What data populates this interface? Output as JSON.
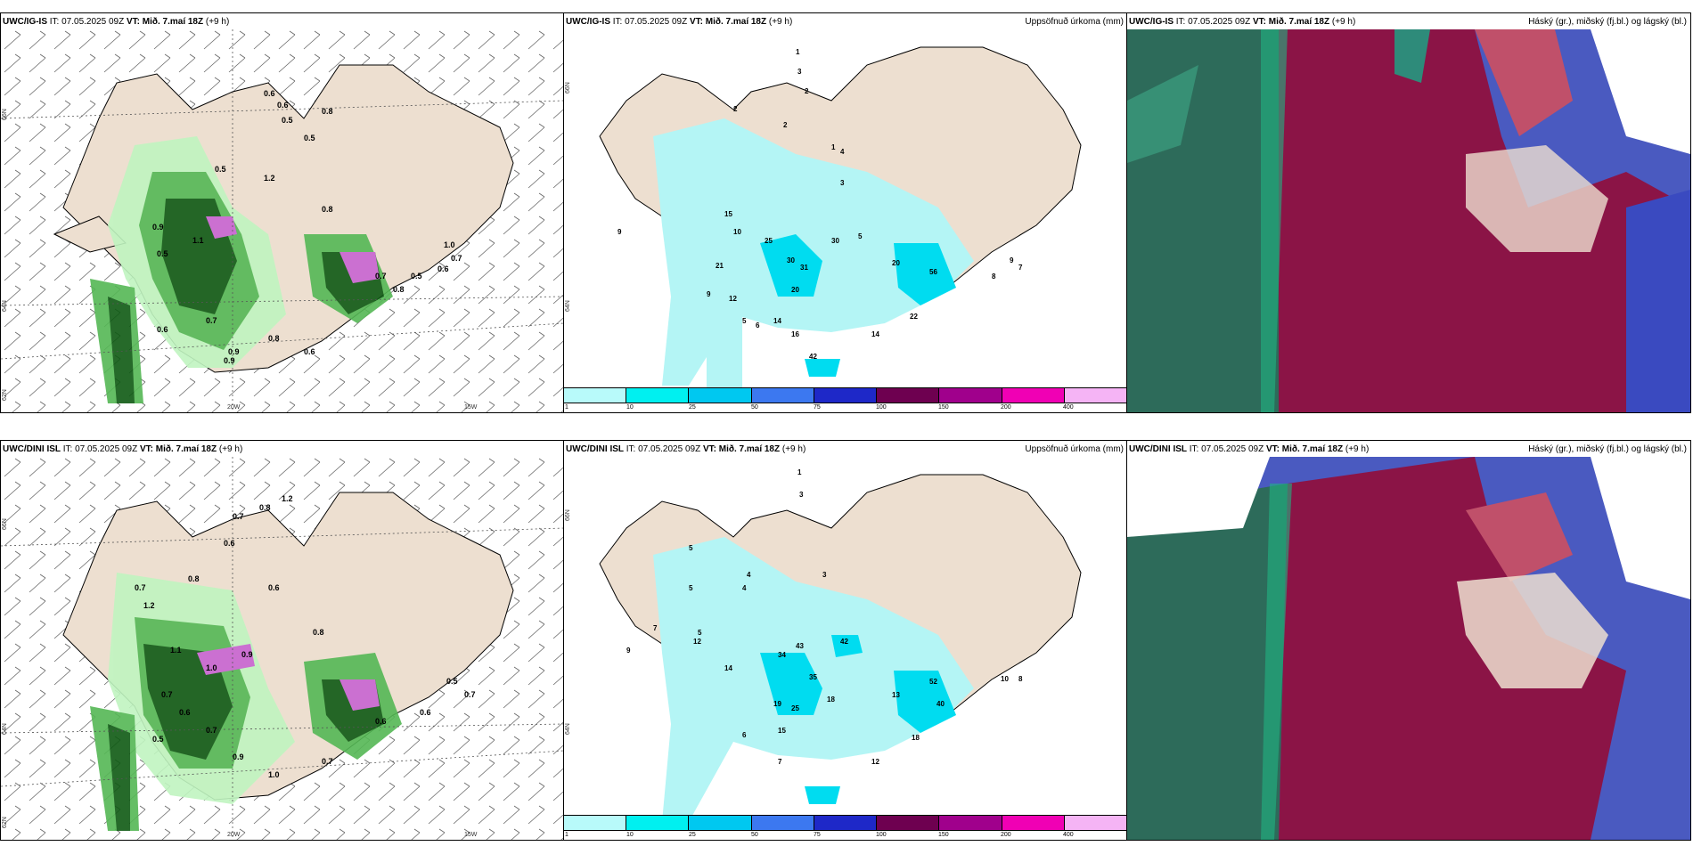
{
  "panels": {
    "top_wind": {
      "model": "UWC/IG-IS",
      "it_label": "IT:",
      "it_value": "07.05.2025 09Z",
      "vt_label": "VT:",
      "vt_value": "Mið. 7.maí 18Z",
      "lead": "(+9 h)",
      "lat_labels": [
        "66N",
        "64N",
        "62N"
      ],
      "lon_labels": [
        "20W",
        "15W"
      ]
    },
    "top_precip": {
      "model": "UWC/IG-IS",
      "it_label": "IT:",
      "it_value": "07.05.2025 09Z",
      "vt_label": "VT:",
      "vt_value": "Mið. 7.maí 18Z",
      "lead": "(+9 h)",
      "right_title": "Uppsöfnuð úrkoma (mm)",
      "lat_labels": [
        "66N",
        "64N"
      ]
    },
    "top_cloud": {
      "model": "UWC/IG-IS",
      "it_label": "IT:",
      "it_value": "07.05.2025 09Z",
      "vt_label": "VT:",
      "vt_value": "Mið. 7.maí 18Z",
      "lead": "(+9 h)",
      "right_title": "Háský (gr.), miðský (fj.bl.) og lágský (bl.)"
    },
    "bot_wind": {
      "model": "UWC/DINI ISL",
      "it_label": "IT:",
      "it_value": "07.05.2025 09Z",
      "vt_label": "VT:",
      "vt_value": "Mið. 7.maí 18Z",
      "lead": "(+9",
      "lead2": "h)",
      "lat_labels": [
        "66N",
        "64N",
        "62N"
      ],
      "lon_labels": [
        "20W",
        "15W"
      ]
    },
    "bot_precip": {
      "model": "UWC/DINI ISL",
      "it_label": "IT:",
      "it_value": "07.05.2025 09Z",
      "vt_label": "VT:",
      "vt_value": "Mið. 7.maí 18Z",
      "lead": "(+9 h)",
      "right_title": "Uppsöfnuð úrkoma (mm)",
      "lat_labels": [
        "66N",
        "64N"
      ]
    },
    "bot_cloud": {
      "model": "UWC/DINI ISL",
      "it_label": "IT:",
      "it_value": "07.05.2025 09Z",
      "vt_label": "VT:",
      "vt_value": "Mið. 7.maí 18Z",
      "lead": "(+9 h)",
      "right_title": "Háský (gr.), miðský (fj.bl.) og lágský (bl.)"
    }
  },
  "colorbar": {
    "labels": [
      "1",
      "10",
      "25",
      "50",
      "75",
      "100",
      "150",
      "200",
      "400"
    ],
    "colors": [
      "#b8fafa",
      "#00f0f0",
      "#00c8f0",
      "#3c78f0",
      "#1e28c8",
      "#6e0050",
      "#a0008c",
      "#f000b4",
      "#f5b4f5"
    ]
  },
  "colors": {
    "land": "#eddfd0",
    "sea": "#ffffff",
    "precip_light": "#c0f5c0",
    "precip_mid": "#55b855",
    "precip_dark": "#0f5a14",
    "precip_purple": "#c864d2",
    "acc_light": "#b4f5f5",
    "acc_mid": "#00dcf0",
    "cloud_high": "#2d6b5a",
    "cloud_mid": "#8b1446",
    "cloud_low": "#5a5ac8"
  },
  "precip_numbers_top": [
    "0.6",
    "0.6",
    "0.5",
    "0.8",
    "0.5",
    "1.2",
    "0.5",
    "0.8",
    "1.0",
    "0.7",
    "0.6",
    "0.9",
    "1.1",
    "0.5",
    "0.7",
    "0.9",
    "0.6",
    "0.9",
    "0.8",
    "0.6",
    "0.7",
    "0.8",
    "0.5"
  ],
  "precip_numbers_bot": [
    "0.8",
    "1.2",
    "0.7",
    "0.8",
    "0.6",
    "0.7",
    "1.2",
    "0.6",
    "1.1",
    "1.0",
    "0.9",
    "0.7",
    "0.6",
    "0.7",
    "0.5",
    "0.9",
    "1.0",
    "0.7",
    "0.6",
    "0.5",
    "0.7",
    "0.6",
    "0.8"
  ],
  "accum_numbers_top": [
    "1",
    "3",
    "2",
    "2",
    "2",
    "1",
    "9",
    "15",
    "10",
    "21",
    "9",
    "12",
    "20",
    "14",
    "16",
    "42",
    "25",
    "30",
    "31",
    "30",
    "20",
    "56",
    "22",
    "14",
    "9",
    "7",
    "8",
    "6",
    "5",
    "4",
    "3",
    "5"
  ],
  "accum_numbers_bot": [
    "1",
    "3",
    "5",
    "4",
    "5",
    "7",
    "12",
    "14",
    "19",
    "25",
    "15",
    "34",
    "43",
    "42",
    "35",
    "18",
    "13",
    "52",
    "40",
    "18",
    "12",
    "7",
    "10",
    "8",
    "6",
    "5",
    "4",
    "3",
    "9"
  ]
}
